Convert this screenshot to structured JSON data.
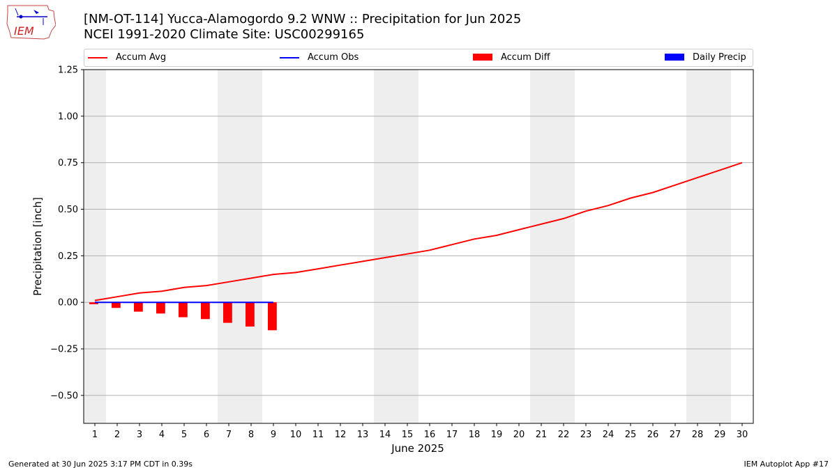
{
  "header": {
    "title_line1": "[NM-OT-114] Yucca-Alamogordo 9.2 WNW :: Precipitation for Jun 2025",
    "title_line2": "NCEI 1991-2020 Climate Site: USC00299165",
    "logo_text": "IEM"
  },
  "legend": {
    "items": [
      {
        "label": "Accum Avg",
        "kind": "line",
        "color": "#ff0000"
      },
      {
        "label": "Accum Obs",
        "kind": "line",
        "color": "#0000ff"
      },
      {
        "label": "Accum Diff",
        "kind": "box",
        "color": "#ff0000"
      },
      {
        "label": "Daily Precip",
        "kind": "box",
        "color": "#0000ff"
      }
    ],
    "placement": "top"
  },
  "footer": {
    "left": "Generated at 30 Jun 2025 3:17 PM CDT in 0.39s",
    "right": "IEM Autoplot App #17"
  },
  "chart_data": {
    "type": "line",
    "xlabel": "June 2025",
    "ylabel": "Precipitation [inch]",
    "xlim": [
      0.5,
      30.5
    ],
    "ylim": [
      -0.65,
      1.25
    ],
    "x_ticks": [
      1,
      2,
      3,
      4,
      5,
      6,
      7,
      8,
      9,
      10,
      11,
      12,
      13,
      14,
      15,
      16,
      17,
      18,
      19,
      20,
      21,
      22,
      23,
      24,
      25,
      26,
      27,
      28,
      29,
      30
    ],
    "y_ticks": [
      -0.5,
      -0.25,
      0.0,
      0.25,
      0.5,
      0.75,
      1.0,
      1.25
    ],
    "y_tick_labels": [
      "−0.50",
      "−0.25",
      "0.00",
      "0.25",
      "0.50",
      "0.75",
      "1.00",
      "1.25"
    ],
    "grid": "horizontal",
    "weekend_shading": [
      [
        0.5,
        1.5
      ],
      [
        6.5,
        8.5
      ],
      [
        13.5,
        15.5
      ],
      [
        20.5,
        22.5
      ],
      [
        27.5,
        29.5
      ]
    ],
    "shade_color": "#eeeeee",
    "series": [
      {
        "name": "Accum Avg",
        "kind": "line",
        "color": "#ff0000",
        "x": [
          1,
          2,
          3,
          4,
          5,
          6,
          7,
          8,
          9,
          10,
          11,
          12,
          13,
          14,
          15,
          16,
          17,
          18,
          19,
          20,
          21,
          22,
          23,
          24,
          25,
          26,
          27,
          28,
          29,
          30
        ],
        "values": [
          0.01,
          0.03,
          0.05,
          0.06,
          0.08,
          0.09,
          0.11,
          0.13,
          0.15,
          0.16,
          0.18,
          0.2,
          0.22,
          0.24,
          0.26,
          0.28,
          0.31,
          0.34,
          0.36,
          0.39,
          0.42,
          0.45,
          0.49,
          0.52,
          0.56,
          0.59,
          0.63,
          0.67,
          0.71,
          0.75
        ]
      },
      {
        "name": "Accum Obs",
        "kind": "line",
        "color": "#0000ff",
        "x": [
          1,
          2,
          3,
          4,
          5,
          6,
          7,
          8,
          9
        ],
        "values": [
          0,
          0,
          0,
          0,
          0,
          0,
          0,
          0,
          0
        ]
      },
      {
        "name": "Accum Diff",
        "kind": "bar",
        "color": "#ff0000",
        "x": [
          1,
          2,
          3,
          4,
          5,
          6,
          7,
          8,
          9
        ],
        "values": [
          -0.01,
          -0.03,
          -0.05,
          -0.06,
          -0.08,
          -0.09,
          -0.11,
          -0.13,
          -0.15
        ]
      },
      {
        "name": "Daily Precip",
        "kind": "bar",
        "color": "#0000ff",
        "x": [
          1,
          2,
          3,
          4,
          5,
          6,
          7,
          8,
          9
        ],
        "values": [
          0,
          0,
          0,
          0,
          0,
          0,
          0,
          0,
          0
        ]
      }
    ]
  }
}
